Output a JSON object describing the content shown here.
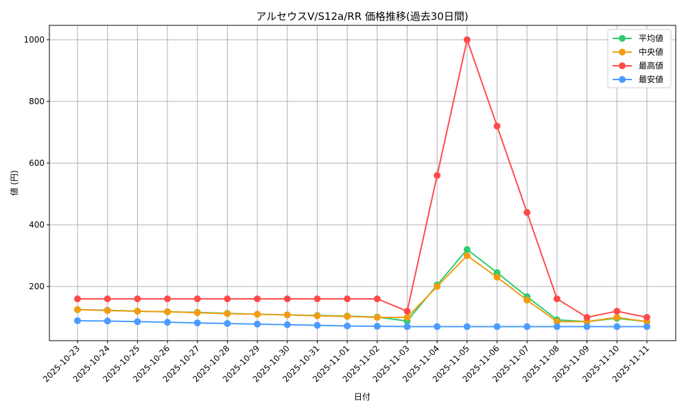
{
  "chart_data": {
    "type": "line",
    "title": "アルセウスV/S12a/RR 価格推移(過去30日間)",
    "xlabel": "日付",
    "ylabel": "値 (円)",
    "ylim": [
      24.4,
      1046.6
    ],
    "yticks": [
      200,
      400,
      600,
      800,
      1000
    ],
    "grid": true,
    "legend_position": "top-right",
    "categories": [
      "2025-10-23",
      "2025-10-24",
      "2025-10-25",
      "2025-10-26",
      "2025-10-27",
      "2025-10-28",
      "2025-10-29",
      "2025-10-30",
      "2025-10-31",
      "2025-11-01",
      "2025-11-02",
      "2025-11-03",
      "2025-11-04",
      "2025-11-05",
      "2025-11-06",
      "2025-11-07",
      "2025-11-08",
      "2025-11-09",
      "2025-11-10",
      "2025-11-11"
    ],
    "series": [
      {
        "name": "平均値",
        "color": "#2ecc71",
        "values": [
          125,
          123,
          120,
          118,
          116,
          113,
          110,
          108,
          106,
          104,
          101,
          88,
          205,
          320,
          245,
          167,
          92,
          86,
          97,
          86
        ]
      },
      {
        "name": "中央値",
        "color": "#f39c12",
        "values": [
          125,
          122,
          120,
          118,
          115,
          112,
          110,
          108,
          105,
          103,
          100,
          100,
          200,
          300,
          230,
          156,
          86,
          86,
          100,
          86
        ]
      },
      {
        "name": "最高値",
        "color": "#ff4a4a",
        "values": [
          160,
          160,
          160,
          160,
          160,
          160,
          160,
          160,
          160,
          160,
          160,
          120,
          560,
          1000,
          720,
          440,
          160,
          100,
          120,
          100
        ]
      },
      {
        "name": "最安値",
        "color": "#4a9bff",
        "values": [
          89,
          88,
          86,
          84,
          82,
          80,
          78,
          76,
          74,
          72,
          71,
          70,
          70,
          70,
          70,
          70,
          70,
          70,
          70,
          70
        ]
      }
    ]
  }
}
